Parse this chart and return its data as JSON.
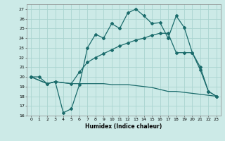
{
  "xlabel": "Humidex (Indice chaleur)",
  "background_color": "#cceae7",
  "grid_color": "#aad4d0",
  "line_color": "#1a6b6b",
  "xlim": [
    -0.5,
    23.5
  ],
  "ylim": [
    16,
    27.5
  ],
  "yticks": [
    16,
    17,
    18,
    19,
    20,
    21,
    22,
    23,
    24,
    25,
    26,
    27
  ],
  "xticks": [
    0,
    1,
    2,
    3,
    4,
    5,
    6,
    7,
    8,
    9,
    10,
    11,
    12,
    13,
    14,
    15,
    16,
    17,
    18,
    19,
    20,
    21,
    22,
    23
  ],
  "line1_x": [
    0,
    1,
    2,
    3,
    4,
    5,
    6,
    7,
    8,
    9,
    10,
    11,
    12,
    13,
    14,
    15,
    16,
    17,
    18,
    19,
    20,
    21,
    22,
    23
  ],
  "line1_y": [
    20.0,
    20.0,
    19.3,
    19.5,
    16.3,
    16.7,
    19.2,
    23.0,
    24.4,
    24.0,
    25.5,
    25.0,
    26.6,
    27.0,
    26.3,
    25.5,
    25.6,
    24.0,
    26.3,
    25.1,
    22.5,
    20.7,
    18.5,
    18.0
  ],
  "line2_x": [
    0,
    2,
    3,
    5,
    6,
    7,
    8,
    9,
    10,
    11,
    12,
    13,
    14,
    15,
    16,
    17,
    18,
    19,
    20,
    21,
    22,
    23
  ],
  "line2_y": [
    20.0,
    19.3,
    19.5,
    19.3,
    20.5,
    21.5,
    22.0,
    22.4,
    22.8,
    23.2,
    23.5,
    23.8,
    24.0,
    24.3,
    24.5,
    24.5,
    22.5,
    22.5,
    22.5,
    21.0,
    18.5,
    18.0
  ],
  "line3_x": [
    0,
    2,
    3,
    5,
    6,
    7,
    8,
    9,
    10,
    11,
    12,
    13,
    14,
    15,
    16,
    17,
    18,
    19,
    20,
    21,
    22,
    23
  ],
  "line3_y": [
    20.0,
    19.3,
    19.5,
    19.3,
    19.3,
    19.3,
    19.3,
    19.3,
    19.2,
    19.2,
    19.2,
    19.1,
    19.0,
    18.9,
    18.7,
    18.5,
    18.5,
    18.4,
    18.3,
    18.2,
    18.1,
    18.0
  ]
}
